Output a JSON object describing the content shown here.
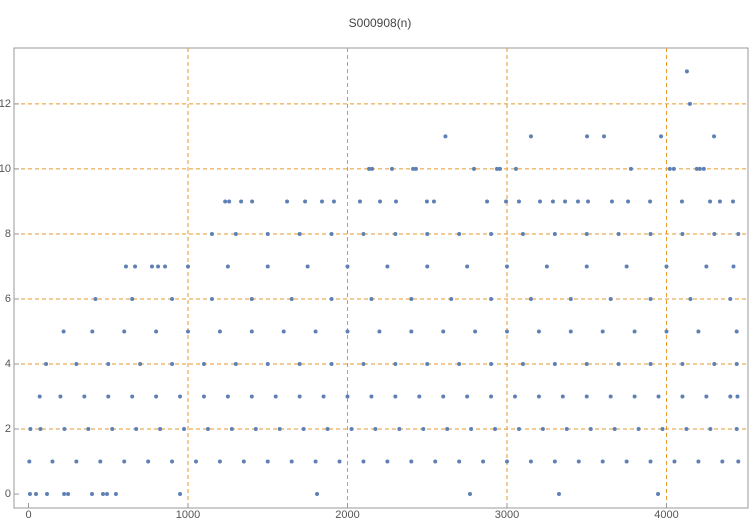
{
  "chart_data": {
    "type": "scatter",
    "title": "S000908(n)",
    "color": "#5e81b5",
    "grid": true,
    "xlim": [
      -91,
      4511
    ],
    "ylim": [
      -0.43,
      13.72
    ],
    "xticks": [
      0,
      1000,
      2000,
      3000,
      4000
    ],
    "yticks": [
      0,
      2,
      4,
      6,
      8,
      10,
      12
    ],
    "x": [
      9,
      47,
      116,
      223,
      248,
      398,
      467,
      492,
      548,
      950,
      1809,
      2768,
      3326,
      3947,
      5,
      150,
      300,
      450,
      600,
      750,
      900,
      1050,
      1200,
      1350,
      1500,
      1650,
      1800,
      1950,
      2100,
      2250,
      2400,
      2550,
      2700,
      2850,
      3000,
      3150,
      3300,
      3450,
      3600,
      3750,
      3900,
      4050,
      4200,
      4350,
      4450,
      12,
      75,
      225,
      375,
      525,
      675,
      825,
      975,
      1125,
      1275,
      1425,
      1575,
      1725,
      1875,
      2025,
      2175,
      2325,
      2475,
      2625,
      2775,
      2925,
      3075,
      3225,
      3375,
      3525,
      3675,
      3825,
      3975,
      4125,
      4275,
      4440,
      70,
      200,
      350,
      500,
      650,
      800,
      950,
      1100,
      1250,
      1400,
      1550,
      1700,
      1850,
      2000,
      2150,
      2300,
      2450,
      2600,
      2750,
      2900,
      3050,
      3200,
      3350,
      3500,
      3650,
      3800,
      3950,
      4100,
      4250,
      4400,
      4445,
      110,
      300,
      500,
      700,
      900,
      1100,
      1300,
      1500,
      1700,
      1900,
      2100,
      2300,
      2500,
      2700,
      2900,
      3100,
      3300,
      3500,
      3700,
      3900,
      4100,
      4300,
      4440,
      220,
      400,
      600,
      800,
      1000,
      1200,
      1400,
      1600,
      1800,
      2000,
      2200,
      2400,
      2600,
      2800,
      3000,
      3200,
      3400,
      3600,
      3800,
      4000,
      4200,
      4440,
      420,
      650,
      900,
      1150,
      1400,
      1650,
      1900,
      2150,
      2400,
      2650,
      2900,
      3150,
      3400,
      3650,
      3900,
      4150,
      4400,
      611,
      668,
      774,
      812,
      856,
      1000,
      1250,
      1500,
      1750,
      2000,
      2250,
      2500,
      2750,
      3000,
      3250,
      3500,
      3750,
      4000,
      4250,
      4420,
      1150,
      1300,
      1500,
      1700,
      1900,
      2100,
      2300,
      2500,
      2700,
      2900,
      3100,
      3300,
      3500,
      3700,
      3900,
      4100,
      4300,
      4450,
      1233,
      1258,
      1333,
      1402,
      1621,
      1734,
      1840,
      1915,
      2078,
      2204,
      2304,
      2498,
      2542,
      2875,
      2994,
      3075,
      3207,
      3288,
      3364,
      3445,
      3508,
      3658,
      3759,
      3897,
      4097,
      4273,
      4335,
      4417,
      2135,
      2154,
      2279,
      2411,
      2429,
      2793,
      2937,
      2956,
      3056,
      3777,
      4021,
      4046,
      4190,
      4209,
      4234,
      2614,
      3150,
      3502,
      3608,
      3966,
      4298,
      4147,
      4128
    ],
    "values": [
      0,
      0,
      0,
      0,
      0,
      0,
      0,
      0,
      0,
      0,
      0,
      0,
      0,
      0,
      1,
      1,
      1,
      1,
      1,
      1,
      1,
      1,
      1,
      1,
      1,
      1,
      1,
      1,
      1,
      1,
      1,
      1,
      1,
      1,
      1,
      1,
      1,
      1,
      1,
      1,
      1,
      1,
      1,
      1,
      1,
      2,
      2,
      2,
      2,
      2,
      2,
      2,
      2,
      2,
      2,
      2,
      2,
      2,
      2,
      2,
      2,
      2,
      2,
      2,
      2,
      2,
      2,
      2,
      2,
      2,
      2,
      2,
      2,
      2,
      2,
      2,
      3,
      3,
      3,
      3,
      3,
      3,
      3,
      3,
      3,
      3,
      3,
      3,
      3,
      3,
      3,
      3,
      3,
      3,
      3,
      3,
      3,
      3,
      3,
      3,
      3,
      3,
      3,
      3,
      3,
      3,
      3,
      4,
      4,
      4,
      4,
      4,
      4,
      4,
      4,
      4,
      4,
      4,
      4,
      4,
      4,
      4,
      4,
      4,
      4,
      4,
      4,
      4,
      4,
      4,
      5,
      5,
      5,
      5,
      5,
      5,
      5,
      5,
      5,
      5,
      5,
      5,
      5,
      5,
      5,
      5,
      5,
      5,
      5,
      5,
      5,
      5,
      6,
      6,
      6,
      6,
      6,
      6,
      6,
      6,
      6,
      6,
      6,
      6,
      6,
      6,
      6,
      6,
      6,
      7,
      7,
      7,
      7,
      7,
      7,
      7,
      7,
      7,
      7,
      7,
      7,
      7,
      7,
      7,
      7,
      7,
      7,
      7,
      7,
      8,
      8,
      8,
      8,
      8,
      8,
      8,
      8,
      8,
      8,
      8,
      8,
      8,
      8,
      8,
      8,
      8,
      8,
      9,
      9,
      9,
      9,
      9,
      9,
      9,
      9,
      9,
      9,
      9,
      9,
      9,
      9,
      9,
      9,
      9,
      9,
      9,
      9,
      9,
      9,
      9,
      9,
      9,
      9,
      9,
      9,
      10,
      10,
      10,
      10,
      10,
      10,
      10,
      10,
      10,
      10,
      10,
      10,
      10,
      10,
      10,
      11,
      11,
      11,
      11,
      11,
      11,
      12,
      13
    ]
  }
}
